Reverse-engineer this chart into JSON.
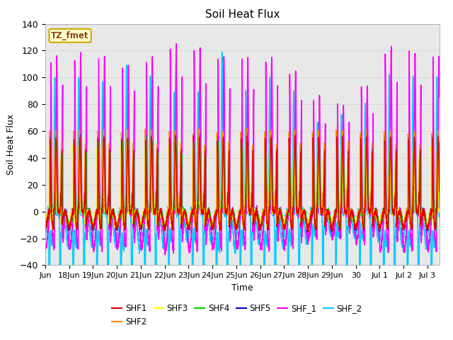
{
  "title": "Soil Heat Flux",
  "ylabel": "Soil Heat Flux",
  "xlabel": "Time",
  "ylim": [
    -40,
    140
  ],
  "xlim_start": 0,
  "xlim_end": 16.5,
  "series": {
    "SHF1": {
      "color": "#dd0000",
      "lw": 1.0
    },
    "SHF2": {
      "color": "#ff8800",
      "lw": 1.0
    },
    "SHF3": {
      "color": "#ffff00",
      "lw": 1.0
    },
    "SHF4": {
      "color": "#00cc00",
      "lw": 1.0
    },
    "SHF5": {
      "color": "#0000bb",
      "lw": 1.0
    },
    "SHF_1": {
      "color": "#ff00ff",
      "lw": 1.2
    },
    "SHF_2": {
      "color": "#00ccff",
      "lw": 1.2
    }
  },
  "legend_box_text": "TZ_fmet",
  "legend_box_bg": "#ffffcc",
  "legend_box_edge": "#ccaa00",
  "grid_color": "#d8d8d8",
  "plot_bg": "#e8e8e8",
  "yticks": [
    -40,
    -20,
    0,
    20,
    40,
    60,
    80,
    100,
    120,
    140
  ],
  "xtick_positions": [
    0,
    1,
    2,
    3,
    4,
    5,
    6,
    7,
    8,
    9,
    10,
    11,
    12,
    13,
    14,
    15,
    16
  ],
  "xtick_labels": [
    "Jun",
    "18Jun",
    "19Jun",
    "20Jun",
    "21Jun",
    "22Jun",
    "23Jun",
    "24Jun",
    "25Jun",
    "26Jun",
    "27Jun",
    "28Jun",
    "29Jun",
    "30",
    "Jul 1",
    "Jul 2",
    "Jul 3"
  ]
}
